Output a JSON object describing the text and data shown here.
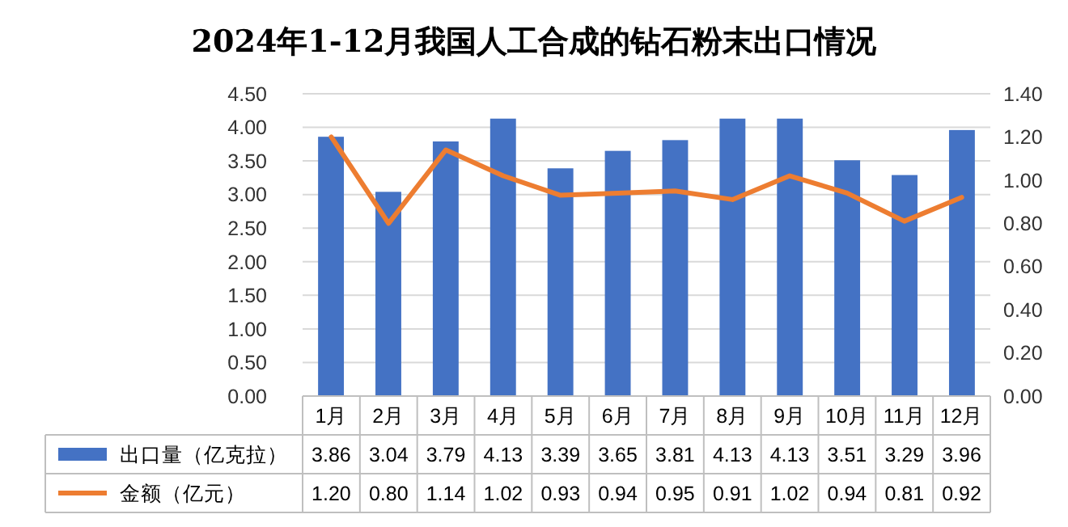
{
  "chart_data": {
    "type": "bar",
    "title": "2024年1-12月我国人工合成的钻石粉末出口情况",
    "categories": [
      "1月",
      "2月",
      "3月",
      "4月",
      "5月",
      "6月",
      "7月",
      "8月",
      "9月",
      "10月",
      "11月",
      "12月"
    ],
    "series": [
      {
        "name": "出口量（亿克拉）",
        "color": "#4472c4",
        "values": [
          3.86,
          3.04,
          3.79,
          4.13,
          3.39,
          3.65,
          3.81,
          4.13,
          4.13,
          3.51,
          3.29,
          3.96
        ],
        "value_labels": [
          "3.86",
          "3.04",
          "3.79",
          "4.13",
          "3.39",
          "3.65",
          "3.81",
          "4.13",
          "4.13",
          "3.51",
          "3.29",
          "3.96"
        ]
      },
      {
        "name": "金额（亿元）",
        "type": "line",
        "axis": "y2",
        "color": "#ed7d31",
        "marker": "none",
        "line_style": "solid",
        "values": [
          1.2,
          0.8,
          1.14,
          1.02,
          0.93,
          0.94,
          0.95,
          0.91,
          1.02,
          0.94,
          0.81,
          0.92
        ],
        "value_labels": [
          "1.20",
          "0.80",
          "1.14",
          "1.02",
          "0.93",
          "0.94",
          "0.95",
          "0.91",
          "1.02",
          "0.94",
          "0.81",
          "0.92"
        ]
      }
    ],
    "ylim": [
      0,
      4.5
    ],
    "yticks": [
      {
        "value": 0,
        "label": "0.00"
      },
      {
        "value": 0.5,
        "label": "0.50"
      },
      {
        "value": 1,
        "label": "1.00"
      },
      {
        "value": 1.5,
        "label": "1.50"
      },
      {
        "value": 2,
        "label": "2.00"
      },
      {
        "value": 2.5,
        "label": "2.50"
      },
      {
        "value": 3,
        "label": "3.00"
      },
      {
        "value": 3.5,
        "label": "3.50"
      },
      {
        "value": 4,
        "label": "4.00"
      },
      {
        "value": 4.5,
        "label": "4.50"
      }
    ],
    "y2lim": [
      0,
      1.4
    ],
    "y2ticks": [
      {
        "value": 0,
        "label": "0.00"
      },
      {
        "value": 0.2,
        "label": "0.20"
      },
      {
        "value": 0.4,
        "label": "0.40"
      },
      {
        "value": 0.6,
        "label": "0.60"
      },
      {
        "value": 0.8,
        "label": "0.80"
      },
      {
        "value": 1,
        "label": "1.00"
      },
      {
        "value": 1.2,
        "label": "1.20"
      },
      {
        "value": 1.4,
        "label": "1.40"
      }
    ],
    "grid": "y",
    "legend": "bottom"
  }
}
